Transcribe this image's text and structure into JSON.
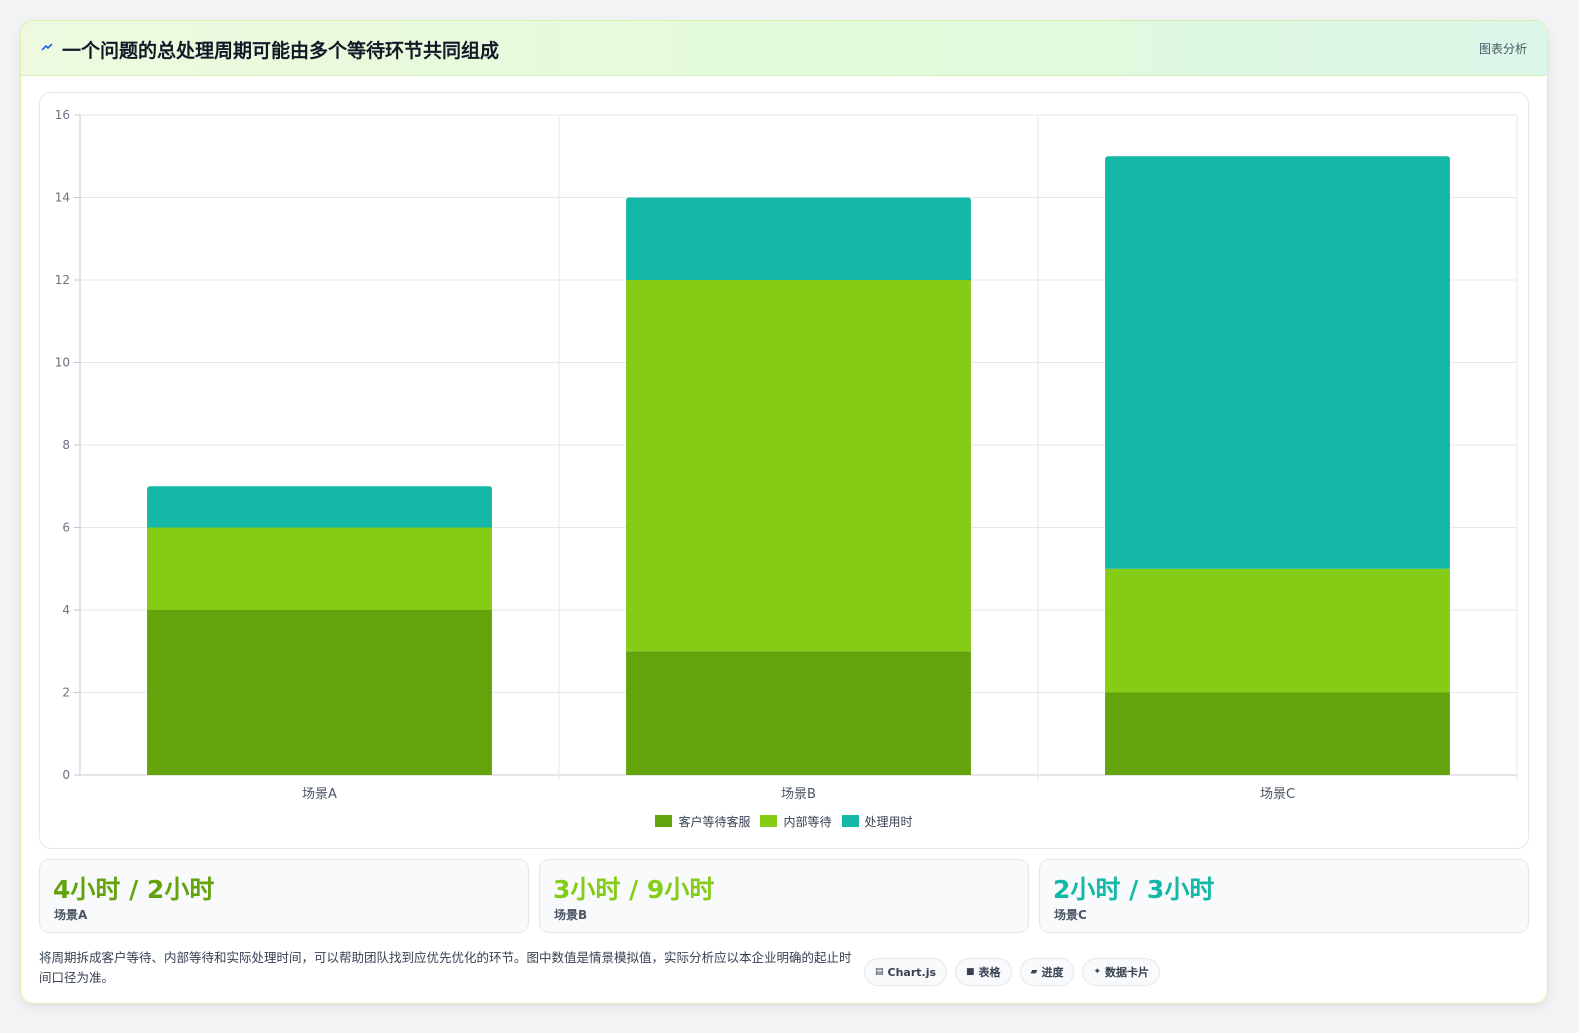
{
  "header": {
    "title": "一个问题的总处理周期可能由多个等待环节共同组成",
    "tag": "图表分析"
  },
  "colors": {
    "customer_wait": "#65a30d",
    "internal_wait": "#84cc16",
    "processing": "#14b8a6"
  },
  "chart_data": {
    "type": "bar",
    "stacked": true,
    "categories": [
      "场景A",
      "场景B",
      "场景C"
    ],
    "series": [
      {
        "name": "客户等待客服",
        "values": [
          4,
          3,
          2
        ],
        "color": "#65a30d"
      },
      {
        "name": "内部等待",
        "values": [
          2,
          9,
          3
        ],
        "color": "#84cc16"
      },
      {
        "name": "处理用时",
        "values": [
          1,
          2,
          10
        ],
        "color": "#14b8a6"
      }
    ],
    "ylim": [
      0,
      16
    ],
    "yticks": [
      "0",
      "2",
      "4",
      "6",
      "8",
      "10",
      "12",
      "14",
      "16"
    ],
    "grid": true,
    "legend": "bottom"
  },
  "stats": [
    {
      "value": "4小时 / 2小时",
      "label": "场景A",
      "color": "#65a30d"
    },
    {
      "value": "3小时 / 9小时",
      "label": "场景B",
      "color": "#84cc16"
    },
    {
      "value": "2小时 / 3小时",
      "label": "场景C",
      "color": "#14b8a6"
    }
  ],
  "footnote": "将周期拆成客户等待、内部等待和实际处理时间，可以帮助团队找到应优先优化的环节。图中数值是情景模拟值，实际分析应以本企业明确的起止时间口径为准。",
  "badges": [
    {
      "icon": "chart-icon",
      "label": "Chart.js"
    },
    {
      "icon": "table-icon",
      "label": "表格"
    },
    {
      "icon": "progress-icon",
      "label": "进度"
    },
    {
      "icon": "sparkle-icon",
      "label": "数据卡片"
    }
  ]
}
